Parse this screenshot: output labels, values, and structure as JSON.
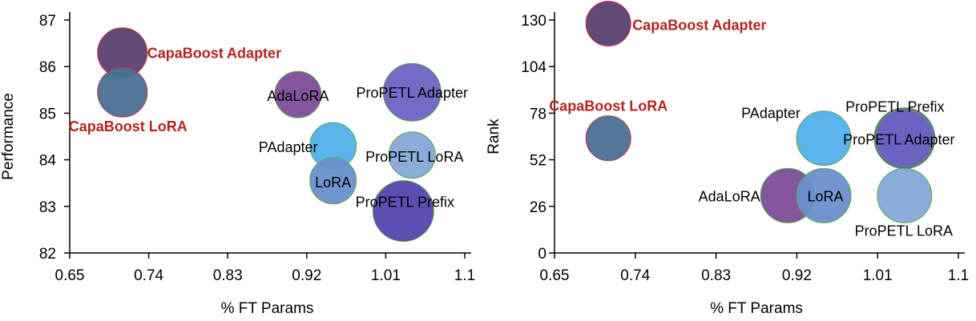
{
  "chart_data": [
    {
      "type": "scatter",
      "xlabel": "% FT Params",
      "ylabel": "Performance",
      "xlim": [
        0.65,
        1.1
      ],
      "ylim": [
        82,
        87
      ],
      "xticks": [
        "0.65",
        "0.74",
        "0.83",
        "0.92",
        "1.01",
        "1.1"
      ],
      "yticks": [
        "82",
        "83",
        "84",
        "85",
        "86",
        "87"
      ],
      "grid": false,
      "points": [
        {
          "label": "CapaBoost Adapter",
          "x": 0.71,
          "y": 86.3,
          "color": "#5a4070",
          "highlight": true,
          "label_pos": "right"
        },
        {
          "label": "CapaBoost LoRA",
          "x": 0.71,
          "y": 85.45,
          "color": "#4a6f96",
          "highlight": true,
          "label_pos": "below-left"
        },
        {
          "label": "AdaLoRA",
          "x": 0.91,
          "y": 85.4,
          "color": "#7e4c98",
          "highlight": false,
          "label_pos": "center"
        },
        {
          "label": "ProPETL Adapter",
          "x": 1.04,
          "y": 85.45,
          "color": "#6c63c2",
          "highlight": false,
          "label_pos": "center"
        },
        {
          "label": "PAdapter",
          "x": 0.95,
          "y": 84.3,
          "color": "#52b0ea",
          "highlight": false,
          "label_pos": "left"
        },
        {
          "label": "ProPETL LoRA",
          "x": 1.04,
          "y": 84.1,
          "color": "#85a6d6",
          "highlight": false,
          "label_pos": "center"
        },
        {
          "label": "LoRA",
          "x": 0.95,
          "y": 83.55,
          "color": "#6c8fcc",
          "highlight": false,
          "label_pos": "center"
        },
        {
          "label": "ProPETL Prefix",
          "x": 1.03,
          "y": 82.9,
          "color": "#5446ad",
          "highlight": false,
          "label_pos": "center"
        }
      ]
    },
    {
      "type": "scatter",
      "xlabel": "% FT Params",
      "ylabel": "Rank",
      "xlim": [
        0.65,
        1.1
      ],
      "ylim": [
        0,
        130
      ],
      "xticks": [
        "0.65",
        "0.74",
        "0.83",
        "0.92",
        "1.01",
        "1.1"
      ],
      "yticks": [
        "0",
        "26",
        "52",
        "78",
        "104",
        "130"
      ],
      "grid": false,
      "points": [
        {
          "label": "CapaBoost Adapter",
          "x": 0.71,
          "y": 128,
          "color": "#5a4070",
          "highlight": true,
          "label_pos": "right"
        },
        {
          "label": "CapaBoost LoRA",
          "x": 0.71,
          "y": 64,
          "color": "#4a6f96",
          "highlight": true,
          "label_pos": "above"
        },
        {
          "label": "PAdapter",
          "x": 0.95,
          "y": 64,
          "color": "#52b0ea",
          "highlight": false,
          "label_pos": "upper-left"
        },
        {
          "label": "ProPETL Prefix",
          "x": 1.04,
          "y": 64,
          "color": "#5446ad",
          "highlight": false,
          "label_pos": "above"
        },
        {
          "label": "ProPETL Adapter",
          "x": 1.04,
          "y": 64,
          "color": "#6c63c2",
          "highlight": false,
          "label_pos": "center"
        },
        {
          "label": "AdaLoRA",
          "x": 0.91,
          "y": 32,
          "color": "#7e4c98",
          "highlight": false,
          "label_pos": "left"
        },
        {
          "label": "LoRA",
          "x": 0.95,
          "y": 32,
          "color": "#6c8fcc",
          "highlight": false,
          "label_pos": "center"
        },
        {
          "label": "ProPETL LoRA",
          "x": 1.04,
          "y": 32,
          "color": "#85a6d6",
          "highlight": false,
          "label_pos": "below"
        }
      ]
    }
  ],
  "colors": {
    "highlight_label": "#b4231f",
    "highlight_stroke": "#c0334a",
    "normal_stroke": "#5aa84a",
    "axis": "#000000",
    "text": "#000000"
  }
}
